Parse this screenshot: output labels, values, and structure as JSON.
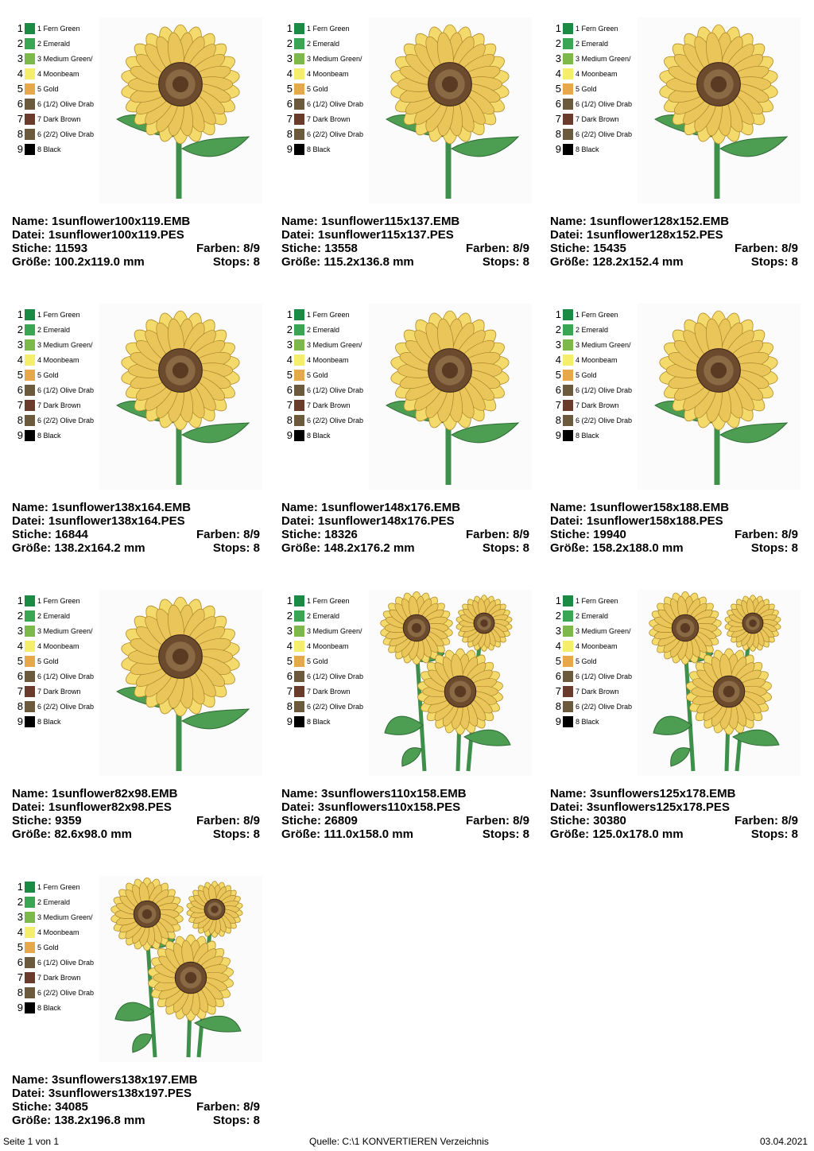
{
  "colors": [
    {
      "num": "1",
      "label": "1 Fern Green",
      "hex": "#1a8a45"
    },
    {
      "num": "2",
      "label": "2 Emerald",
      "hex": "#3aa552"
    },
    {
      "num": "3",
      "label": "3 Medium Green/",
      "hex": "#7db84a"
    },
    {
      "num": "4",
      "label": "4 Moonbeam",
      "hex": "#f5ee6a"
    },
    {
      "num": "5",
      "label": "5 Gold",
      "hex": "#e6a84a"
    },
    {
      "num": "6",
      "label": "6 (1/2) Olive Drab",
      "hex": "#6b5a3c"
    },
    {
      "num": "7",
      "label": "7 Dark Brown",
      "hex": "#6a3a2a"
    },
    {
      "num": "8",
      "label": "6 (2/2) Olive Drab",
      "hex": "#6b5a3c"
    },
    {
      "num": "9",
      "label": "8 Black",
      "hex": "#000000"
    }
  ],
  "labels": {
    "name": "Name:",
    "file": "Datei:",
    "stitches": "Stiche:",
    "colors": "Farben:",
    "size": "Größe:",
    "stops": "Stops:"
  },
  "designs": [
    {
      "name": "1sunflower100x119.EMB",
      "file": "1sunflower100x119.PES",
      "stitches": "11593",
      "colors": "8/9",
      "size": "100.2x119.0 mm",
      "stops": "8",
      "kind": "single"
    },
    {
      "name": "1sunflower115x137.EMB",
      "file": "1sunflower115x137.PES",
      "stitches": "13558",
      "colors": "8/9",
      "size": "115.2x136.8 mm",
      "stops": "8",
      "kind": "single"
    },
    {
      "name": "1sunflower128x152.EMB",
      "file": "1sunflower128x152.PES",
      "stitches": "15435",
      "colors": "8/9",
      "size": "128.2x152.4 mm",
      "stops": "8",
      "kind": "single"
    },
    {
      "name": "1sunflower138x164.EMB",
      "file": "1sunflower138x164.PES",
      "stitches": "16844",
      "colors": "8/9",
      "size": "138.2x164.2 mm",
      "stops": "8",
      "kind": "single"
    },
    {
      "name": "1sunflower148x176.EMB",
      "file": "1sunflower148x176.PES",
      "stitches": "18326",
      "colors": "8/9",
      "size": "148.2x176.2 mm",
      "stops": "8",
      "kind": "single"
    },
    {
      "name": "1sunflower158x188.EMB",
      "file": "1sunflower158x188.PES",
      "stitches": "19940",
      "colors": "8/9",
      "size": "158.2x188.0 mm",
      "stops": "8",
      "kind": "single"
    },
    {
      "name": "1sunflower82x98.EMB",
      "file": "1sunflower82x98.PES",
      "stitches": "9359",
      "colors": "8/9",
      "size": "82.6x98.0 mm",
      "stops": "8",
      "kind": "single"
    },
    {
      "name": "3sunflowers110x158.EMB",
      "file": "3sunflowers110x158.PES",
      "stitches": "26809",
      "colors": "8/9",
      "size": "111.0x158.0 mm",
      "stops": "8",
      "kind": "triple"
    },
    {
      "name": "3sunflowers125x178.EMB",
      "file": "3sunflowers125x178.PES",
      "stitches": "30380",
      "colors": "8/9",
      "size": "125.0x178.0 mm",
      "stops": "8",
      "kind": "triple"
    },
    {
      "name": "3sunflowers138x197.EMB",
      "file": "3sunflowers138x197.PES",
      "stitches": "34085",
      "colors": "8/9",
      "size": "138.2x196.8 mm",
      "stops": "8",
      "kind": "triple"
    }
  ],
  "footer": {
    "page": "Seite 1 von 1",
    "source": "Quelle: C:\\1 KONVERTIEREN Verzeichnis",
    "date": "03.04.2021"
  }
}
